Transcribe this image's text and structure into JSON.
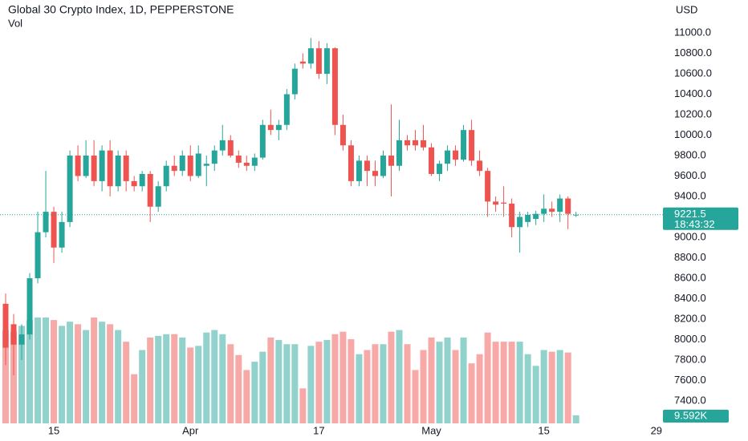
{
  "chart_data": {
    "type": "candlestick",
    "title": "Global 30 Crypto Index, 1D, PEPPERSTONE",
    "volume_label": "Vol",
    "currency": "USD",
    "categories": [
      null,
      null,
      null,
      null,
      null,
      null,
      "15",
      null,
      null,
      null,
      null,
      null,
      null,
      null,
      null,
      null,
      null,
      null,
      null,
      null,
      null,
      null,
      null,
      "Apr",
      null,
      null,
      null,
      null,
      null,
      null,
      null,
      null,
      null,
      null,
      null,
      null,
      null,
      null,
      null,
      "17",
      null,
      null,
      null,
      null,
      null,
      null,
      null,
      null,
      null,
      null,
      null,
      null,
      null,
      "May",
      null,
      null,
      null,
      null,
      null,
      null,
      null,
      null,
      null,
      null,
      null,
      null,
      null,
      "15",
      null,
      null,
      null,
      null,
      null,
      null,
      null,
      null,
      null,
      null,
      null,
      null,
      null,
      "29"
    ],
    "open": [
      8350,
      8150,
      7950,
      8050,
      8600,
      9050,
      9250,
      8900,
      9150,
      9800,
      9600,
      9800,
      9550,
      9850,
      9500,
      9800,
      9550,
      9500,
      9620,
      9300,
      9500,
      9700,
      9650,
      9800,
      9600,
      9700,
      9720,
      9850,
      9950,
      9800,
      9730,
      9700,
      9780,
      10100,
      10050,
      10100,
      10400,
      10720,
      10700,
      10850,
      10600,
      10850,
      10100,
      9900,
      9550,
      9750,
      9650,
      9600,
      9800,
      9700,
      9950,
      9950,
      9950,
      9880,
      9620,
      9720,
      9850,
      9760,
      10050,
      9750,
      9650,
      9350,
      9340,
      9330,
      9100,
      9150,
      9180,
      9230,
      9280,
      9250,
      9380,
      9220,
      null,
      null,
      null,
      null,
      null,
      null,
      null,
      null,
      null,
      null
    ],
    "high": [
      8450,
      8250,
      8150,
      8650,
      9250,
      9650,
      9300,
      9250,
      9850,
      9900,
      9950,
      9950,
      9900,
      9950,
      9850,
      9850,
      9600,
      9650,
      9650,
      9550,
      9750,
      9800,
      9850,
      9900,
      9900,
      9800,
      9900,
      10100,
      10000,
      9850,
      9800,
      9820,
      10150,
      10250,
      10150,
      10450,
      10700,
      10800,
      10950,
      10920,
      10900,
      10860,
      10200,
      9950,
      9800,
      9800,
      9750,
      9850,
      10300,
      10150,
      10000,
      10050,
      10100,
      9920,
      9750,
      9900,
      9900,
      10100,
      10150,
      9850,
      9680,
      9400,
      9500,
      9380,
      9250,
      9250,
      9260,
      9420,
      9350,
      9420,
      9400,
      9250,
      null,
      null,
      null,
      null,
      null,
      null,
      null,
      null,
      null,
      null
    ],
    "low": [
      7750,
      7650,
      7800,
      8000,
      8550,
      9000,
      8750,
      8850,
      9100,
      9550,
      9580,
      9500,
      9450,
      9400,
      9450,
      9450,
      9450,
      9450,
      9150,
      9250,
      9450,
      9600,
      9600,
      9550,
      9580,
      9500,
      9650,
      9800,
      9780,
      9680,
      9650,
      9650,
      9760,
      10000,
      9950,
      10050,
      10350,
      10650,
      10650,
      10550,
      10500,
      10000,
      9850,
      9500,
      9500,
      9500,
      9500,
      9580,
      9400,
      9650,
      9850,
      9850,
      9850,
      9600,
      9550,
      9650,
      9700,
      9740,
      9700,
      9600,
      9200,
      9250,
      9200,
      9000,
      8850,
      9100,
      9120,
      9150,
      9200,
      9150,
      9080,
      9200,
      null,
      null,
      null,
      null,
      null,
      null,
      null,
      null,
      null,
      null
    ],
    "close": [
      7920,
      7950,
      8050,
      8600,
      9050,
      9250,
      8900,
      9150,
      9800,
      9600,
      9800,
      9550,
      9850,
      9500,
      9800,
      9550,
      9500,
      9620,
      9300,
      9500,
      9700,
      9650,
      9800,
      9600,
      9820,
      9720,
      9850,
      9950,
      9800,
      9730,
      9700,
      9780,
      10100,
      10050,
      10100,
      10400,
      10650,
      10700,
      10850,
      10600,
      10850,
      10100,
      9900,
      9550,
      9750,
      9650,
      9600,
      9800,
      9700,
      9950,
      9900,
      9900,
      9880,
      9620,
      9720,
      9850,
      9760,
      10050,
      9750,
      9650,
      9350,
      9320,
      9330,
      9100,
      9200,
      9220,
      9230,
      9280,
      9250,
      9380,
      9230,
      9221.5,
      null,
      null,
      null,
      null,
      null,
      null,
      null,
      null,
      null,
      null
    ],
    "volume": [
      112000,
      110000,
      117000,
      124000,
      127000,
      127000,
      124000,
      117000,
      122000,
      119000,
      112000,
      127000,
      122000,
      119000,
      112000,
      98000,
      59000,
      88000,
      103000,
      105000,
      107000,
      107000,
      103000,
      91000,
      93000,
      109000,
      112000,
      107000,
      95000,
      82000,
      64000,
      74000,
      86000,
      103000,
      100000,
      95000,
      95000,
      42000,
      93000,
      98000,
      100000,
      107000,
      110000,
      101000,
      83000,
      88000,
      95000,
      95000,
      110000,
      112000,
      95000,
      64000,
      88000,
      103000,
      98000,
      103000,
      88000,
      103000,
      72000,
      83000,
      109000,
      98000,
      98000,
      98000,
      98000,
      83000,
      69000,
      88000,
      86000,
      88000,
      85000,
      9592,
      null,
      null,
      null,
      null,
      null,
      null,
      null,
      null,
      null,
      null
    ],
    "value_labels": [
      null,
      null,
      null,
      null,
      null,
      null,
      null,
      null,
      null,
      null,
      null,
      null,
      null,
      null,
      null,
      null,
      null,
      null,
      null,
      null,
      null,
      null,
      null,
      null,
      null,
      null,
      null,
      null,
      null,
      null,
      null,
      null,
      null,
      null,
      null,
      null,
      null,
      null,
      null,
      null,
      null,
      null,
      null,
      null,
      null,
      null,
      null,
      null,
      null,
      null,
      null,
      null,
      null,
      null,
      null,
      null,
      null,
      null,
      null,
      null,
      null,
      null,
      null,
      null,
      null,
      null,
      null,
      null,
      null,
      null,
      null,
      "9.592K",
      null,
      null,
      null,
      null,
      null,
      null,
      null,
      null,
      null,
      null
    ],
    "last_price": 9221.5,
    "countdown": "18:43:32",
    "ylim": [
      7180,
      11322
    ],
    "yticks": [
      {
        "value": 7400,
        "label": "7400.0"
      },
      {
        "value": 7600,
        "label": "7600.0"
      },
      {
        "value": 7800,
        "label": "7800.0"
      },
      {
        "value": 8000,
        "label": "8000.0"
      },
      {
        "value": 8200,
        "label": "8200.0"
      },
      {
        "value": 8400,
        "label": "8400.0"
      },
      {
        "value": 8600,
        "label": "8600.0"
      },
      {
        "value": 8800,
        "label": "8800.0"
      },
      {
        "value": 9000,
        "label": "9000.0"
      },
      {
        "value": 9200,
        "label": "9200.0"
      },
      {
        "value": 9400,
        "label": "9400.0"
      },
      {
        "value": 9600,
        "label": "9600.0"
      },
      {
        "value": 9800,
        "label": "9800.0"
      },
      {
        "value": 10000,
        "label": "10000.0"
      },
      {
        "value": 10200,
        "label": "10200.0"
      },
      {
        "value": 10400,
        "label": "10400.0"
      },
      {
        "value": 10600,
        "label": "10600.0"
      },
      {
        "value": 10800,
        "label": "10800.0"
      },
      {
        "value": 11000,
        "label": "11000.0"
      }
    ],
    "grid": false,
    "up_color": "#26a69a",
    "down_color": "#ef5350"
  }
}
